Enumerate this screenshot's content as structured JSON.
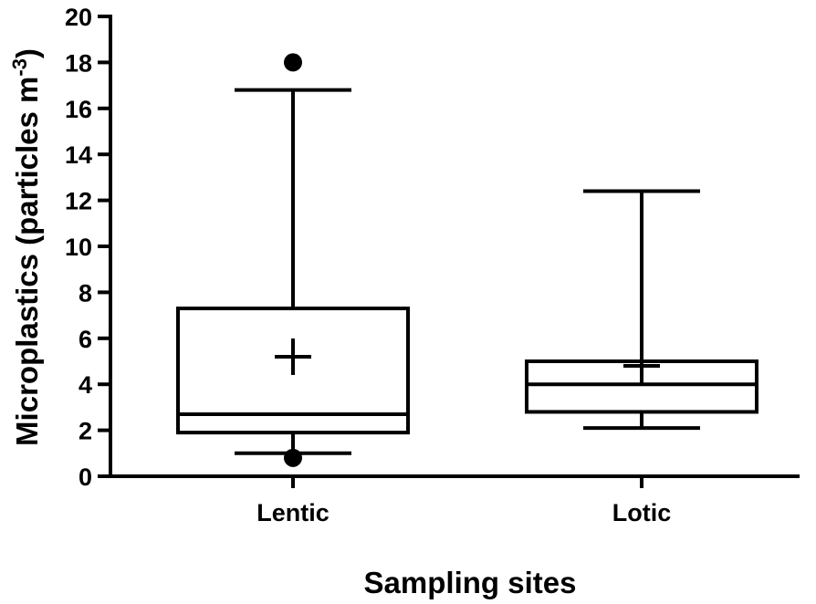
{
  "chart_data": {
    "type": "box",
    "title": "",
    "xlabel": "Sampling sites",
    "ylabel": {
      "main": "Microplastics (particles m",
      "superscript": "-3",
      "close": ")"
    },
    "ylim": [
      0,
      20
    ],
    "yticks": [
      "0",
      "2",
      "4",
      "6",
      "8",
      "10",
      "12",
      "14",
      "16",
      "18",
      "20"
    ],
    "grid": false,
    "legend": "none",
    "categories": [
      "Lentic",
      "Lotic"
    ],
    "boxes": [
      {
        "category": "Lentic",
        "whisker_low": 1.0,
        "q1": 1.9,
        "median": 2.7,
        "q3": 7.3,
        "whisker_high": 16.8,
        "mean": 5.2,
        "outliers": [
          18.0,
          0.8
        ]
      },
      {
        "category": "Lotic",
        "whisker_low": 2.1,
        "q1": 2.8,
        "median": 4.0,
        "q3": 5.0,
        "whisker_high": 12.4,
        "mean": 4.8,
        "outliers": []
      }
    ],
    "colors": {
      "stroke": "#000000",
      "fill": "#ffffff",
      "background": "#ffffff"
    }
  }
}
